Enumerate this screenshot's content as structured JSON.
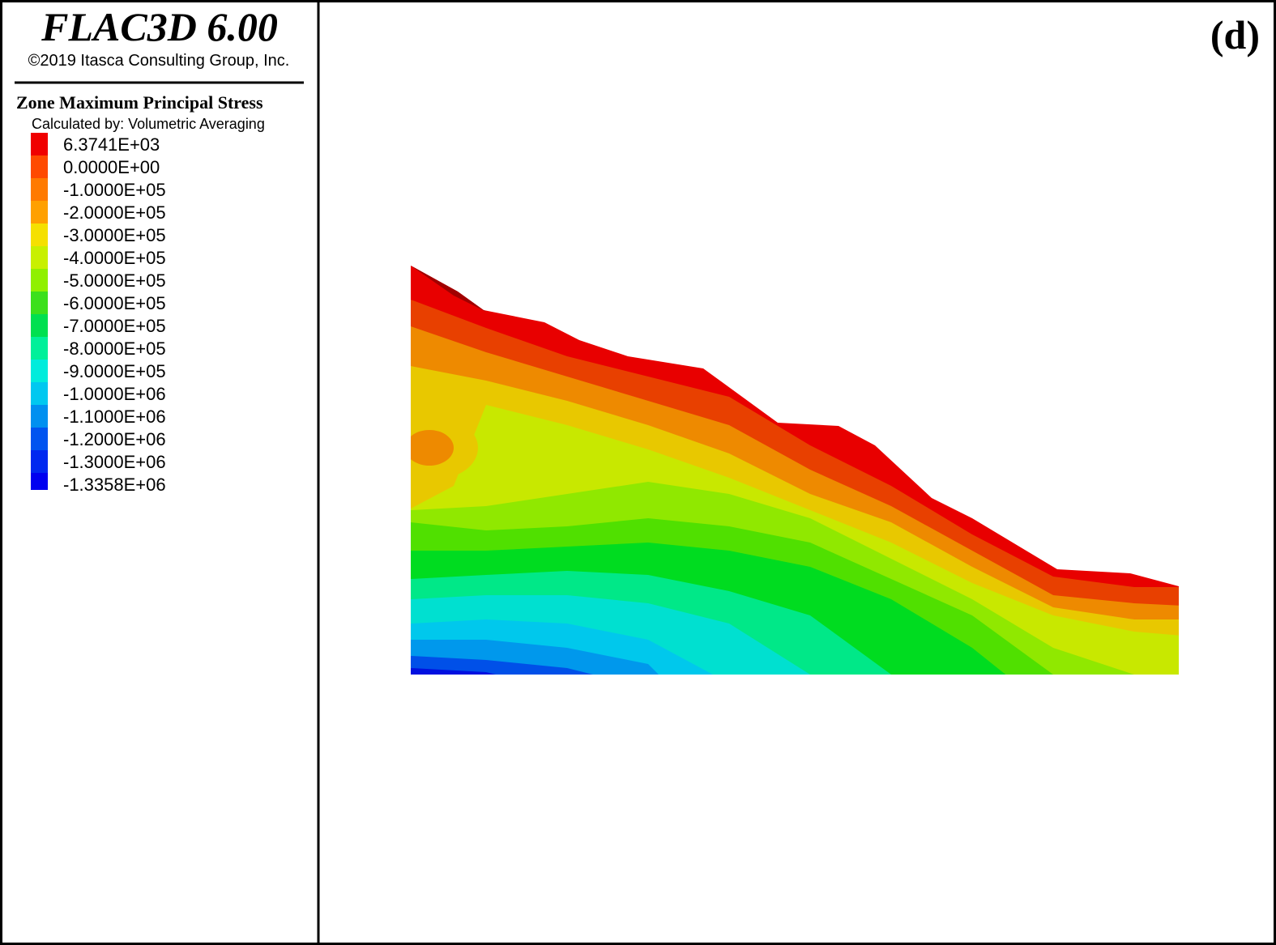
{
  "header": {
    "title": "FLAC3D 6.00",
    "copyright": "©2019 Itasca Consulting Group, Inc."
  },
  "legend": {
    "title": "Zone Maximum Principal Stress",
    "subtitle": "Calculated by: Volumetric Averaging",
    "entries": [
      {
        "label": "6.3741E+03",
        "color": "#f00000"
      },
      {
        "label": "0.0000E+00",
        "color": "#ff4a00"
      },
      {
        "label": "-1.0000E+05",
        "color": "#ff7a00"
      },
      {
        "label": "-2.0000E+05",
        "color": "#ffa000"
      },
      {
        "label": "-3.0000E+05",
        "color": "#f5e000"
      },
      {
        "label": "-4.0000E+05",
        "color": "#c8f000"
      },
      {
        "label": "-5.0000E+05",
        "color": "#90f000"
      },
      {
        "label": "-6.0000E+05",
        "color": "#3ce01c"
      },
      {
        "label": "-7.0000E+05",
        "color": "#00e050"
      },
      {
        "label": "-8.0000E+05",
        "color": "#00f09a"
      },
      {
        "label": "-9.0000E+05",
        "color": "#00ecdc"
      },
      {
        "label": "-1.0000E+06",
        "color": "#00c8f0"
      },
      {
        "label": "-1.1000E+06",
        "color": "#0090f0"
      },
      {
        "label": "-1.2000E+06",
        "color": "#0054f0"
      },
      {
        "label": "-1.3000E+06",
        "color": "#0028f0"
      },
      {
        "label": "-1.3358E+06",
        "color": "#0000f0"
      }
    ]
  },
  "panel_label": "(d)"
}
